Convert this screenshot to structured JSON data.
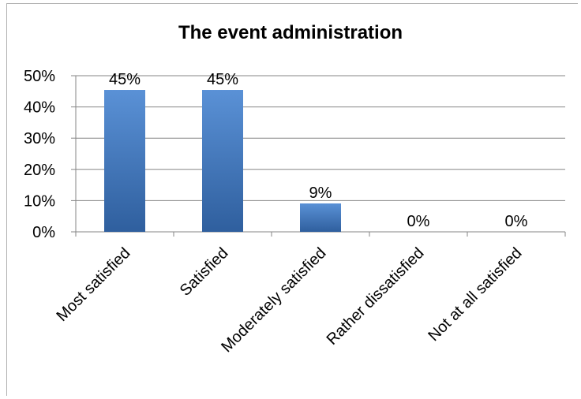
{
  "chart_data": {
    "type": "bar",
    "title": "The event administration",
    "xlabel": "",
    "ylabel": "",
    "categories": [
      "Most satisfied",
      "Satisfied",
      "Moderately satisfied",
      "Rather dissatisfied",
      "Not at all satisfied"
    ],
    "values": [
      45.45,
      45.45,
      9.09,
      0,
      0
    ],
    "data_labels": [
      "45%",
      "45%",
      "9%",
      "0%",
      "0%"
    ],
    "ylim": [
      0,
      50
    ],
    "yticks": [
      0,
      10,
      20,
      30,
      40,
      50
    ],
    "ytick_labels": [
      "0%",
      "10%",
      "20%",
      "30%",
      "40%",
      "50%"
    ],
    "grid": true,
    "legend": "none",
    "colors": {
      "bar": "#4a7fc4",
      "bar_dark": "#2f5f9e",
      "grid": "#868686"
    }
  }
}
